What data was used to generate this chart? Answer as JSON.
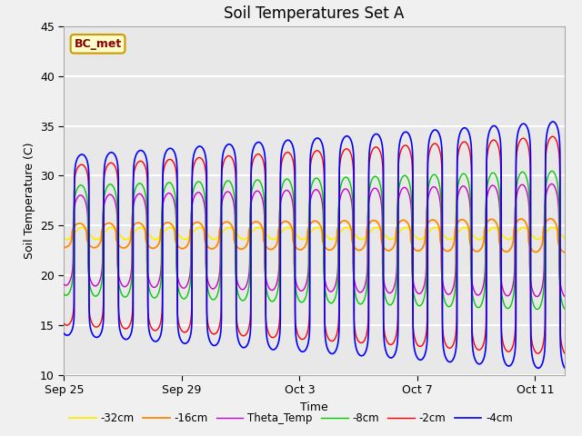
{
  "title": "Soil Temperatures Set A",
  "xlabel": "Time",
  "ylabel": "Soil Temperature (C)",
  "ylim": [
    10,
    45
  ],
  "xlim_days": 17,
  "annotation": "BC_met",
  "x_ticks_labels": [
    "Sep 25",
    "Sep 29",
    "Oct 3",
    "Oct 7",
    "Oct 11"
  ],
  "x_ticks_days": [
    0,
    4,
    8,
    12,
    16
  ],
  "series_colors": {
    "-2cm": "#ff0000",
    "-4cm": "#0000ff",
    "-8cm": "#00cc00",
    "-16cm": "#ff8800",
    "-32cm": "#ffee00",
    "Theta_Temp": "#cc00cc"
  },
  "plot_bg_color": "#e8e8e8",
  "fig_bg_color": "#f0f0f0",
  "title_fontsize": 12,
  "label_fontsize": 9,
  "tick_fontsize": 9
}
